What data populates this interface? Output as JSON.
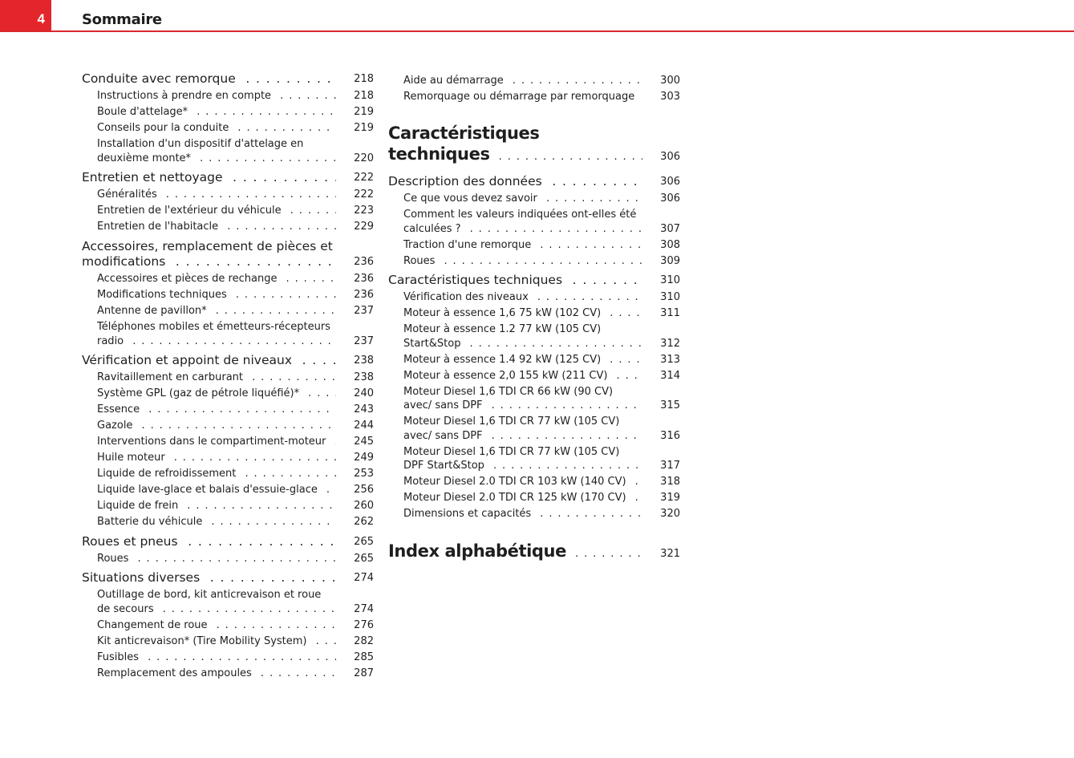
{
  "header": {
    "page_number": "4",
    "title": "Sommaire",
    "accent_color": "#e3262b"
  },
  "left": [
    {
      "level": 1,
      "text": "Conduite avec remorque",
      "page": "218"
    },
    {
      "level": 2,
      "text": "Instructions à prendre en compte",
      "page": "218"
    },
    {
      "level": 2,
      "text": "Boule d'attelage*",
      "page": "219"
    },
    {
      "level": 2,
      "text": "Conseils pour la conduite",
      "page": "219"
    },
    {
      "level": 2,
      "text": "Installation d'un dispositif d'attelage en deuxième monte*",
      "page": "220"
    },
    {
      "level": 1,
      "text": "Entretien et nettoyage",
      "page": "222"
    },
    {
      "level": 2,
      "text": "Généralités",
      "page": "222"
    },
    {
      "level": 2,
      "text": "Entretien de l'extérieur du véhicule",
      "page": "223"
    },
    {
      "level": 2,
      "text": "Entretien de l'habitacle",
      "page": "229"
    },
    {
      "level": 1,
      "text": "Accessoires, remplacement de pièces et modifications",
      "page": "236"
    },
    {
      "level": 2,
      "text": "Accessoires et pièces de rechange",
      "page": "236"
    },
    {
      "level": 2,
      "text": "Modifications techniques",
      "page": "236"
    },
    {
      "level": 2,
      "text": "Antenne de pavillon*",
      "page": "237"
    },
    {
      "level": 2,
      "text": "Téléphones mobiles et émetteurs-récepteurs radio",
      "page": "237"
    },
    {
      "level": 1,
      "text": "Vérification et appoint de niveaux",
      "page": "238"
    },
    {
      "level": 2,
      "text": "Ravitaillement en carburant",
      "page": "238"
    },
    {
      "level": 2,
      "text": "Système GPL (gaz de pétrole liquéfié)*",
      "page": "240"
    },
    {
      "level": 2,
      "text": "Essence",
      "page": "243"
    },
    {
      "level": 2,
      "text": "Gazole",
      "page": "244"
    },
    {
      "level": 2,
      "text": "Interventions dans le compartiment-moteur",
      "page": "245"
    },
    {
      "level": 2,
      "text": "Huile moteur",
      "page": "249"
    },
    {
      "level": 2,
      "text": "Liquide de refroidissement",
      "page": "253"
    },
    {
      "level": 2,
      "text": "Liquide lave-glace et balais d'essuie-glace",
      "page": "256"
    },
    {
      "level": 2,
      "text": "Liquide de frein",
      "page": "260"
    },
    {
      "level": 2,
      "text": "Batterie du véhicule",
      "page": "262"
    },
    {
      "level": 1,
      "text": "Roues et pneus",
      "page": "265"
    },
    {
      "level": 2,
      "text": "Roues",
      "page": "265"
    },
    {
      "level": 1,
      "text": "Situations diverses",
      "page": "274"
    },
    {
      "level": 2,
      "text": "Outillage de bord, kit anticrevaison et roue de secours",
      "page": "274"
    },
    {
      "level": 2,
      "text": "Changement de roue",
      "page": "276"
    },
    {
      "level": 2,
      "text": "Kit anticrevaison* (Tire Mobility System)",
      "page": "282"
    },
    {
      "level": 2,
      "text": "Fusibles",
      "page": "285"
    },
    {
      "level": 2,
      "text": "Remplacement des ampoules",
      "page": "287"
    }
  ],
  "right": [
    {
      "level": 2,
      "text": "Aide au démarrage",
      "page": "300"
    },
    {
      "level": 2,
      "text": "Remorquage ou démarrage par remorquage",
      "page": "303"
    },
    {
      "level": 0,
      "text": "Caractéristiques techniques",
      "page": "306"
    },
    {
      "level": 1,
      "text": "Description des données",
      "page": "306"
    },
    {
      "level": 2,
      "text": "Ce que vous devez savoir",
      "page": "306"
    },
    {
      "level": 2,
      "text": "Comment les valeurs indiquées ont-elles été calculées ?",
      "page": "307"
    },
    {
      "level": 2,
      "text": "Traction d'une remorque",
      "page": "308"
    },
    {
      "level": 2,
      "text": "Roues",
      "page": "309"
    },
    {
      "level": 1,
      "text": "Caractéristiques techniques",
      "page": "310"
    },
    {
      "level": 2,
      "text": "Vérification des niveaux",
      "page": "310"
    },
    {
      "level": 2,
      "text": "Moteur à essence 1,6 75 kW (102 CV)",
      "page": "311"
    },
    {
      "level": 2,
      "text": "Moteur à essence 1.2 77 kW (105 CV) Start&Stop",
      "page": "312"
    },
    {
      "level": 2,
      "text": "Moteur à essence 1.4 92 kW (125 CV)",
      "page": "313"
    },
    {
      "level": 2,
      "text": "Moteur à essence 2,0 155 kW (211 CV)",
      "page": "314"
    },
    {
      "level": 2,
      "text": "Moteur Diesel 1,6 TDI CR 66 kW (90 CV) avec/ sans DPF",
      "page": "315"
    },
    {
      "level": 2,
      "text": "Moteur Diesel 1,6 TDI CR 77 kW (105 CV) avec/ sans DPF",
      "page": "316"
    },
    {
      "level": 2,
      "text": "Moteur Diesel 1,6 TDI CR 77 kW (105 CV) DPF Start&Stop",
      "page": "317"
    },
    {
      "level": 2,
      "text": "Moteur Diesel 2.0 TDI CR 103 kW (140 CV)",
      "page": "318"
    },
    {
      "level": 2,
      "text": "Moteur Diesel 2.0 TDI CR 125 kW (170 CV)",
      "page": "319"
    },
    {
      "level": 2,
      "text": "Dimensions et capacités",
      "page": "320"
    },
    {
      "level": 0,
      "text": "Index alphabétique",
      "page": "321"
    }
  ]
}
